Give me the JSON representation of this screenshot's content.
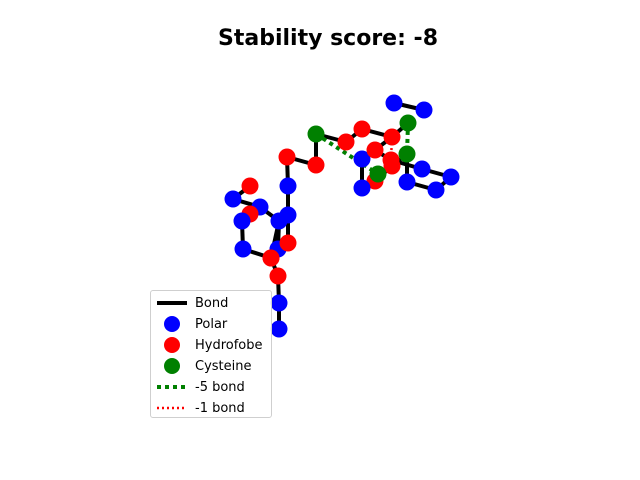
{
  "title": "Stability score: -8",
  "colors": {
    "polar": "#0000ff",
    "hydrofobe": "#ff0000",
    "cysteine": "#008000",
    "bond": "#000000",
    "bond_minus5": "#008000",
    "bond_minus1": "#ff0000"
  },
  "legend": [
    {
      "label": "Bond",
      "kind": "line"
    },
    {
      "label": "Polar",
      "kind": "polar"
    },
    {
      "label": "Hydrofobe",
      "kind": "hydrofobe"
    },
    {
      "label": "Cysteine",
      "kind": "cysteine"
    },
    {
      "label": "-5 bond",
      "kind": "dash5"
    },
    {
      "label": "-1 bond",
      "kind": "dot1"
    }
  ]
}
